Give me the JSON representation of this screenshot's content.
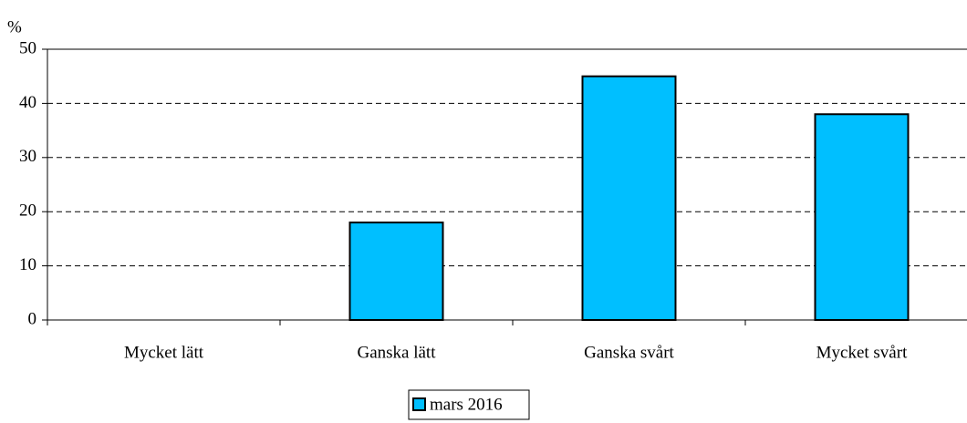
{
  "chart_data": {
    "type": "bar",
    "y_label": "%",
    "categories": [
      "Mycket lätt",
      "Ganska lätt",
      "Ganska svårt",
      "Mycket svårt"
    ],
    "series": [
      {
        "name": "mars 2016",
        "color": "#00bfff",
        "values": [
          0,
          18,
          45,
          38
        ]
      }
    ],
    "ylim": [
      0,
      50
    ],
    "yticks": [
      0,
      10,
      20,
      30,
      40,
      50
    ],
    "grid": true,
    "legend": "bottom"
  }
}
